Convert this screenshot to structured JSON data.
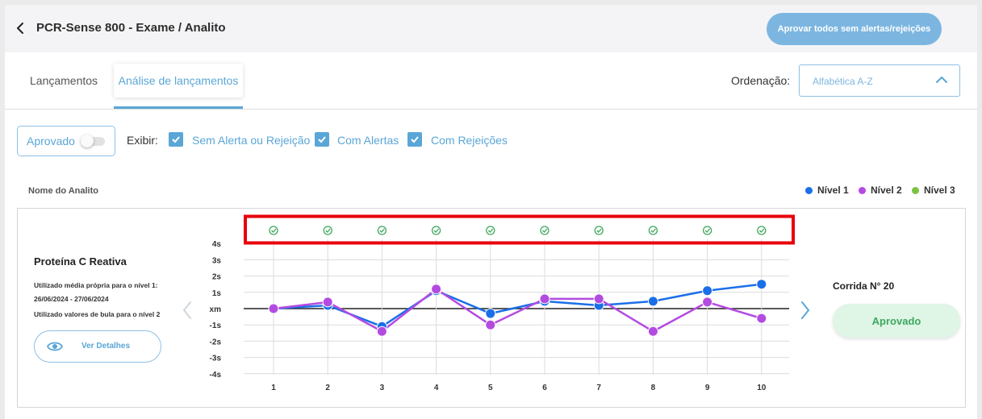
{
  "header": {
    "title": "PCR-Sense 800 - Exame / Analito",
    "approve_all_label": "Aprovar todos sem alertas/rejeições"
  },
  "tabs": [
    {
      "label": "Lançamentos"
    },
    {
      "label": "Análise de lançamentos",
      "active": true
    }
  ],
  "ordering": {
    "label": "Ordenação:",
    "value": "Alfabética A-Z"
  },
  "filters": {
    "toggle_label": "Aprovado",
    "toggle_on": false,
    "show_label": "Exibir:",
    "options": [
      {
        "label": "Sem Alerta ou Rejeição",
        "checked": true
      },
      {
        "label": "Com Alertas",
        "checked": true
      },
      {
        "label": "Com Rejeições",
        "checked": true
      }
    ]
  },
  "list_header": {
    "column": "Nome do Analito"
  },
  "legend": [
    {
      "label": "Nível 1",
      "color": "#1a6fe8"
    },
    {
      "label": "Nível 2",
      "color": "#b44be1"
    },
    {
      "label": "Nível 3",
      "color": "#7cc242"
    }
  ],
  "analyte": {
    "name": "Proteína C Reativa",
    "note_line1": "Utilizado média própria para o nível 1:",
    "note_line2": "26/06/2024 - 27/06/2024",
    "note_line3": "Utilizado valores de bula para o nível 2",
    "details_label": "Ver Detalhes",
    "run_label": "Corrida N° 20",
    "status": "Aprovado",
    "status_color": "#3ea85e"
  },
  "chart_data": {
    "type": "line",
    "x": [
      1,
      2,
      3,
      4,
      5,
      6,
      7,
      8,
      9,
      10
    ],
    "y_ticks": [
      "-4s",
      "-3s",
      "-2s",
      "-1s",
      "xm",
      "1s",
      "2s",
      "3s",
      "4s"
    ],
    "ylim": [
      -4,
      4
    ],
    "grid": true,
    "status_icons": [
      "check-circle",
      "check-circle",
      "check-circle",
      "check-circle",
      "check-circle",
      "check-circle",
      "check-circle",
      "check-circle",
      "check-circle",
      "check-circle"
    ],
    "status_icon_color": "#3ea85e",
    "highlight_color": "#e8000b",
    "series": [
      {
        "name": "Nível 1",
        "color": "#1a6fe8",
        "values": [
          0,
          0.2,
          -1.1,
          1.1,
          -0.3,
          0.45,
          0.2,
          0.45,
          1.1,
          1.5
        ]
      },
      {
        "name": "Nível 2",
        "color": "#b44be1",
        "values": [
          0,
          0.4,
          -1.4,
          1.2,
          -1.0,
          0.6,
          0.6,
          -1.4,
          0.4,
          -0.6
        ]
      }
    ]
  }
}
